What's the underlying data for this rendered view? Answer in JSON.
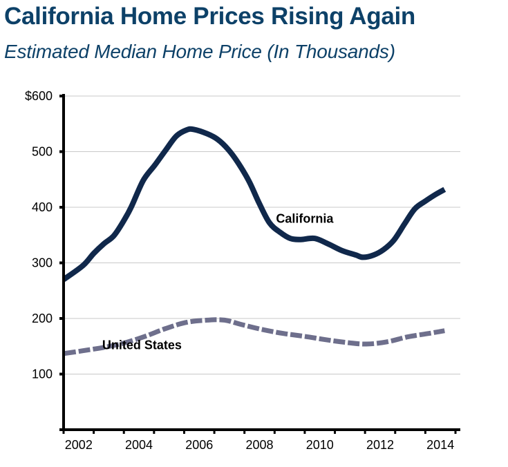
{
  "header": {
    "title": "California Home Prices Rising Again",
    "subtitle": "Estimated Median Home Price (In Thousands)"
  },
  "colors": {
    "title": "#0d4168",
    "california": "#10284b",
    "united_states": "#6e6f8c",
    "grid": "#c8c8c8",
    "axis": "#000000"
  },
  "chart_data": {
    "type": "line",
    "title": "California Home Prices Rising Again",
    "subtitle": "Estimated Median Home Price (In Thousands)",
    "xlabel": "",
    "ylabel": "",
    "xlim": [
      2002,
      2015
    ],
    "ylim": [
      0,
      600
    ],
    "x_ticks": [
      2002,
      2003,
      2004,
      2005,
      2006,
      2007,
      2008,
      2009,
      2010,
      2011,
      2012,
      2013,
      2014,
      2015
    ],
    "x_tick_labels": [
      {
        "label": "2002",
        "at": 2002.5
      },
      {
        "label": "2004",
        "at": 2004.5
      },
      {
        "label": "2006",
        "at": 2006.5
      },
      {
        "label": "2008",
        "at": 2008.5
      },
      {
        "label": "2010",
        "at": 2010.5
      },
      {
        "label": "2012",
        "at": 2012.5
      },
      {
        "label": "2014",
        "at": 2014.5
      }
    ],
    "y_ticks": [
      0,
      100,
      200,
      300,
      400,
      500,
      600
    ],
    "y_tick_labels": [
      {
        "label": "100",
        "value": 100
      },
      {
        "label": "200",
        "value": 200
      },
      {
        "label": "300",
        "value": 300
      },
      {
        "label": "400",
        "value": 400
      },
      {
        "label": "500",
        "value": 500
      },
      {
        "label": "$600",
        "value": 600
      }
    ],
    "grid": true,
    "legend": "none (inline labels)",
    "series": [
      {
        "name": "California",
        "style": "solid",
        "label": {
          "text": "California",
          "x": 2010.0,
          "y": 372
        },
        "x": [
          2002.0,
          2002.64,
          2003.0,
          2003.33,
          2003.67,
          2004.0,
          2004.25,
          2004.64,
          2005.03,
          2005.39,
          2005.74,
          2006.08,
          2006.31,
          2006.77,
          2007.11,
          2007.46,
          2007.8,
          2008.15,
          2008.49,
          2008.83,
          2009.18,
          2009.52,
          2009.87,
          2010.33,
          2010.78,
          2011.24,
          2011.7,
          2011.93,
          2012.28,
          2012.62,
          2012.96,
          2013.31,
          2013.65,
          2014.0,
          2014.34,
          2014.64
        ],
        "values": [
          270,
          295,
          317,
          334,
          349,
          376,
          401,
          448,
          476,
          503,
          528,
          539,
          540,
          532,
          522,
          504,
          479,
          447,
          407,
          372,
          355,
          344,
          342,
          344,
          334,
          322,
          314,
          310,
          314,
          324,
          341,
          370,
          397,
          411,
          423,
          432
        ]
      },
      {
        "name": "United States",
        "style": "dashed",
        "label": {
          "text": "United States",
          "x": 2004.6,
          "y": 145
        },
        "x": [
          2002.02,
          2002.64,
          2003.33,
          2004.02,
          2004.71,
          2005.39,
          2006.08,
          2006.77,
          2007.34,
          2007.91,
          2008.6,
          2009.29,
          2009.98,
          2010.67,
          2011.35,
          2012.04,
          2012.73,
          2013.42,
          2014.11,
          2014.64
        ],
        "values": [
          137,
          142,
          148,
          156,
          168,
          182,
          193,
          197,
          197,
          189,
          180,
          173,
          168,
          162,
          157,
          154,
          158,
          167,
          173,
          178
        ]
      }
    ]
  }
}
